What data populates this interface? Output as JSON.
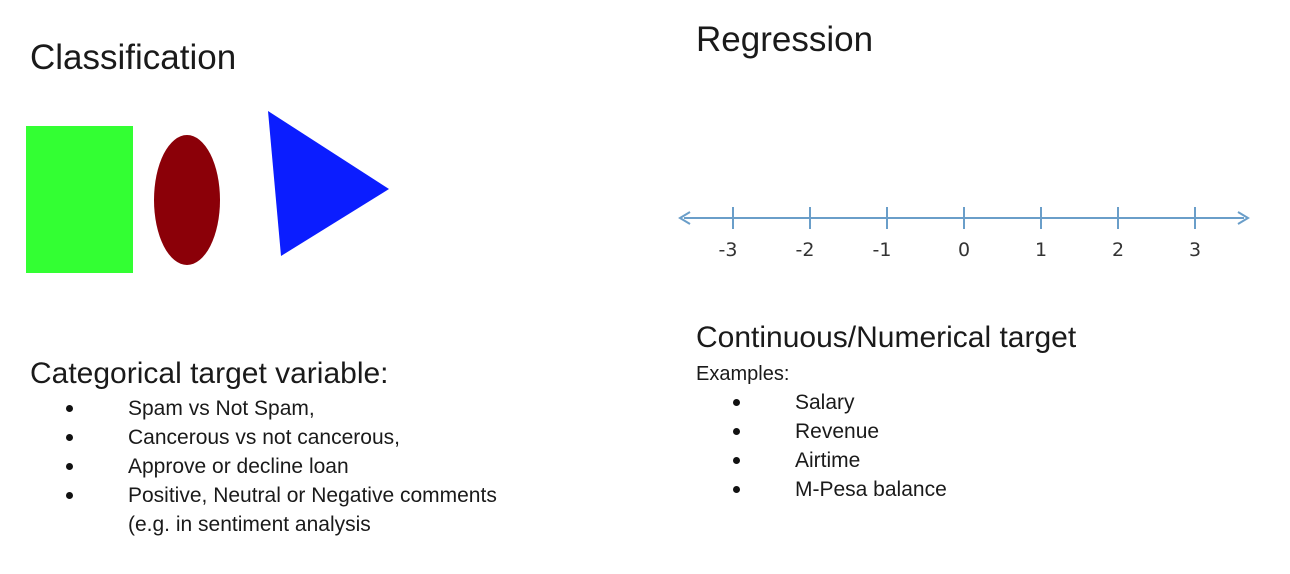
{
  "classification": {
    "title": "Classification",
    "shapes": {
      "square_color": "#33ff33",
      "ellipse_color": "#8b0008",
      "triangle_color": "#0b1dff"
    },
    "target_heading": "Categorical target variable:",
    "examples": [
      "Spam vs Not Spam,",
      "Cancerous vs not cancerous,",
      "Approve or decline loan",
      "Positive, Neutral or Negative comments"
    ],
    "continuation": "(e.g. in sentiment analysis"
  },
  "regression": {
    "title": "Regression",
    "number_line": {
      "ticks": [
        "-3",
        "-2",
        "-1",
        "0",
        "1",
        "2",
        "3"
      ],
      "color": "#6a9ec9"
    },
    "target_heading": "Continuous/Numerical target",
    "examples_label": "Examples:",
    "examples": [
      "Salary",
      "Revenue",
      "Airtime",
      "M-Pesa balance"
    ]
  }
}
